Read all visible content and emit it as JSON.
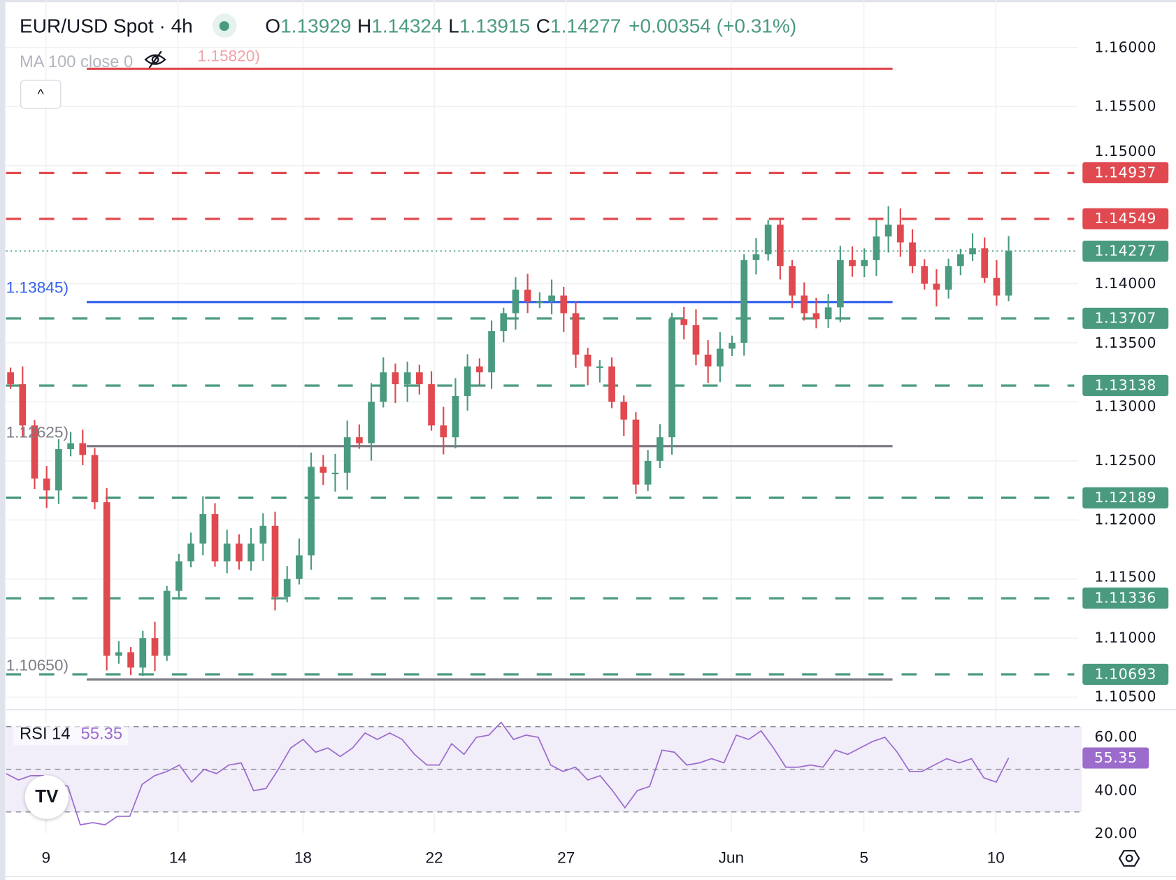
{
  "legend": {
    "title": "EUR/USD Spot · 4h",
    "status_color": "#4a9a80",
    "o_label": "O",
    "o_value": "1.13929",
    "h_label": "H",
    "h_value": "1.14324",
    "l_label": "L",
    "l_value": "1.13915",
    "c_label": "C",
    "c_value": "1.14277",
    "change": "+0.00354 (+0.31%)"
  },
  "ma_legend": {
    "label": "MA 100 close 0",
    "ghost_value": "1.15820)",
    "icon": "eye-off-icon"
  },
  "collapse_button": {
    "label": "^"
  },
  "rsi_legend": {
    "label": "RSI 14",
    "value": "55.35"
  },
  "settings_icon": "gear-icon",
  "logo": "TV",
  "colors": {
    "up": "#4a9a80",
    "down": "#e0494f",
    "support": "#4a9a80",
    "resistance": "#e0494f",
    "blue_level": "#3461f0",
    "gray_level": "#7b7c86",
    "rsi": "#9c6ccd"
  },
  "chart_data": [
    {
      "type": "candlestick",
      "title": "EUR/USD Spot · 4h",
      "ylim": [
        1.1035,
        1.1625
      ],
      "y_ticks": [
        "1.16000",
        "1.15500",
        "1.15000",
        "1.14000",
        "1.13500",
        "1.13000",
        "1.12500",
        "1.12000",
        "1.11500",
        "1.11000",
        "1.10500"
      ],
      "x_ticks": [
        "9",
        "14",
        "18",
        "22",
        "27",
        "Jun",
        "5",
        "10"
      ],
      "grid": true,
      "first_open": 1.1325,
      "closes": [
        1.1315,
        1.128,
        1.1235,
        1.1225,
        1.126,
        1.1265,
        1.1255,
        1.1215,
        1.1085,
        1.1088,
        1.1075,
        1.11,
        1.1085,
        1.114,
        1.1165,
        1.118,
        1.1205,
        1.1165,
        1.118,
        1.1165,
        1.118,
        1.1195,
        1.1135,
        1.115,
        1.117,
        1.1245,
        1.124,
        1.124,
        1.127,
        1.1265,
        1.13,
        1.1325,
        1.1315,
        1.1325,
        1.1315,
        1.128,
        1.127,
        1.1305,
        1.133,
        1.1325,
        1.136,
        1.1375,
        1.1395,
        1.1385,
        1.1385,
        1.139,
        1.1375,
        1.134,
        1.133,
        1.133,
        1.13,
        1.1285,
        1.123,
        1.125,
        1.127,
        1.137,
        1.1365,
        1.134,
        1.133,
        1.1345,
        1.135,
        1.142,
        1.1425,
        1.145,
        1.1415,
        1.139,
        1.1375,
        1.137,
        1.138,
        1.142,
        1.1415,
        1.142,
        1.144,
        1.145,
        1.1435,
        1.1415,
        1.14,
        1.1395,
        1.1415,
        1.1425,
        1.143,
        1.1405,
        1.139,
        1.14277
      ],
      "levels": {
        "resistance_dashed": [
          {
            "value": 1.14937,
            "label": "1.14937"
          },
          {
            "value": 1.14549,
            "label": "1.14549"
          }
        ],
        "support_dashed": [
          {
            "value": 1.13707,
            "label": "1.13707"
          },
          {
            "value": 1.13138,
            "label": "1.13138"
          },
          {
            "value": 1.12189,
            "label": "1.12189"
          },
          {
            "value": 1.11336,
            "label": "1.11336"
          },
          {
            "value": 1.10693,
            "label": "1.10693"
          }
        ],
        "last_price": {
          "value": 1.14277,
          "label": "1.14277"
        },
        "solid": [
          {
            "value": 1.1582,
            "label": "1.15820)",
            "color": "red"
          },
          {
            "value": 1.13845,
            "label": "1.13845)",
            "color": "blue"
          },
          {
            "value": 1.12625,
            "label": "1.12625)",
            "color": "gray"
          },
          {
            "value": 1.1065,
            "label": "1.10650)",
            "color": "gray"
          }
        ]
      }
    },
    {
      "type": "line",
      "title": "RSI 14",
      "ylim": [
        15,
        78
      ],
      "y_ticks": [
        "60.00",
        "40.00",
        "20.00"
      ],
      "bands": [
        30,
        50,
        70
      ],
      "last_value": "55.35",
      "values": [
        48,
        45,
        47,
        47,
        44,
        42,
        24,
        25,
        24,
        28,
        28,
        43,
        47,
        49,
        52,
        44,
        50,
        48,
        52,
        53,
        40,
        41,
        50,
        60,
        64,
        58,
        60,
        56,
        60,
        67,
        64,
        67,
        64,
        57,
        52,
        52,
        62,
        57,
        65,
        66,
        72,
        64,
        66,
        65,
        52,
        49,
        51,
        45,
        47,
        40,
        32,
        40,
        42,
        59,
        58,
        52,
        53,
        55,
        53,
        66,
        64,
        68,
        60,
        51,
        51,
        52,
        51,
        59,
        57,
        60,
        63,
        65,
        58,
        49,
        49,
        52,
        55,
        53,
        55,
        46,
        44,
        55.35
      ]
    }
  ]
}
